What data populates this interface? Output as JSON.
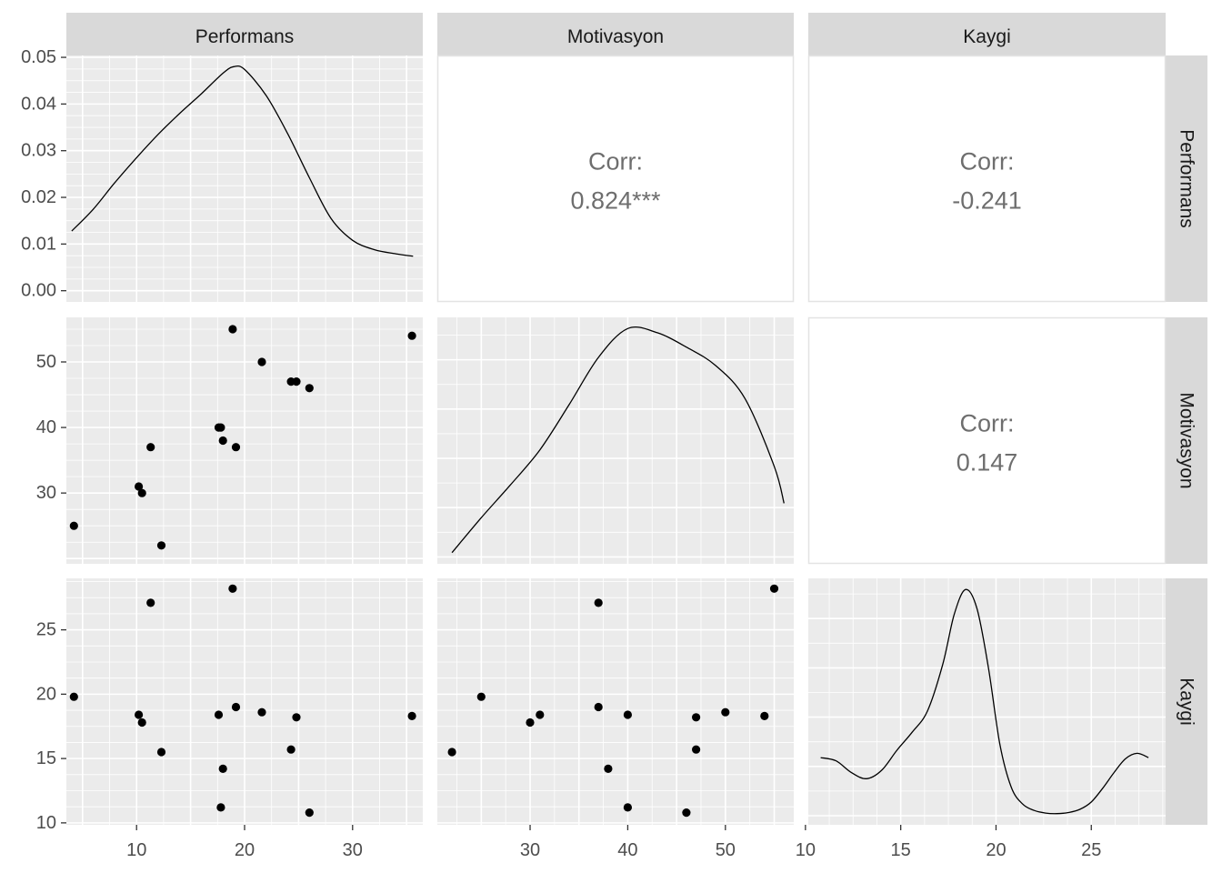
{
  "variables": [
    "Performans",
    "Motivasyon",
    "Kaygi"
  ],
  "chart_data": {
    "type": "scatter",
    "subtype": "scatterplot-matrix",
    "title": "",
    "grid": true,
    "columns": [
      {
        "name": "Performans",
        "x_ticks": [
          10,
          20,
          30
        ],
        "xlim": [
          3.5,
          36.5
        ]
      },
      {
        "name": "Motivasyon",
        "x_ticks": [
          30,
          40,
          50
        ],
        "xlim": [
          20.5,
          57
        ]
      },
      {
        "name": "Kaygi",
        "x_ticks": [
          10,
          15,
          20,
          25
        ],
        "xlim": [
          10.15,
          28.9
        ]
      }
    ],
    "rows": [
      {
        "name": "Performans",
        "y_ticks": [
          "0.00",
          "0.01",
          "0.02",
          "0.03",
          "0.04",
          "0.05"
        ],
        "ylim": [
          -0.0024,
          0.0504
        ]
      },
      {
        "name": "Motivasyon",
        "y_ticks": [
          30,
          40,
          50
        ],
        "ylim": [
          19.2,
          56.8
        ]
      },
      {
        "name": "Kaygi",
        "y_ticks": [
          10,
          15,
          20,
          25
        ],
        "ylim": [
          9.85,
          29.0
        ]
      }
    ],
    "correlations": [
      {
        "row": "Performans",
        "col": "Motivasyon",
        "label": "Corr:",
        "value": "0.824***"
      },
      {
        "row": "Performans",
        "col": "Kaygi",
        "label": "Corr:",
        "value": "-0.241"
      },
      {
        "row": "Motivasyon",
        "col": "Kaygi",
        "label": "Corr:",
        "value": "0.147"
      }
    ],
    "densities": {
      "Performans": {
        "x": [
          4.0,
          6.0,
          8.0,
          10.0,
          12.0,
          14.0,
          16.0,
          18.0,
          19.0,
          20.0,
          22.0,
          24.0,
          26.0,
          28.0,
          30.0,
          32.0,
          34.0,
          35.6
        ],
        "y": [
          0.0128,
          0.0175,
          0.0232,
          0.0285,
          0.0335,
          0.038,
          0.0422,
          0.0466,
          0.048,
          0.0474,
          0.0418,
          0.0336,
          0.0242,
          0.0155,
          0.0108,
          0.0088,
          0.0079,
          0.0074
        ]
      },
      "Motivasyon": {
        "x": [
          22.0,
          25.0,
          28.0,
          31.0,
          34.0,
          37.0,
          40.0,
          43.0,
          46.0,
          49.0,
          52.0,
          55.0,
          56.0
        ],
        "y": [
          0.0122,
          0.0139,
          0.0155,
          0.0172,
          0.0194,
          0.0217,
          0.0231,
          0.0229,
          0.0222,
          0.0213,
          0.0197,
          0.0164,
          0.0146
        ]
      },
      "Kaygi": {
        "x": [
          10.8,
          11.6,
          12.4,
          13.2,
          14.0,
          14.8,
          15.6,
          16.4,
          17.2,
          17.8,
          18.4,
          19.0,
          19.6,
          20.2,
          20.8,
          21.4,
          22.0,
          22.6,
          23.2,
          23.8,
          24.4,
          25.0,
          25.6,
          26.2,
          26.8,
          27.4,
          28.0
        ],
        "y": [
          0.055,
          0.052,
          0.041,
          0.035,
          0.043,
          0.062,
          0.079,
          0.099,
          0.143,
          0.19,
          0.214,
          0.196,
          0.14,
          0.068,
          0.027,
          0.011,
          0.005,
          0.0025,
          0.002,
          0.003,
          0.006,
          0.013,
          0.026,
          0.041,
          0.054,
          0.059,
          0.055
        ]
      }
    },
    "points": [
      {
        "Performans": 4.2,
        "Motivasyon": 25,
        "Kaygi": 19.8
      },
      {
        "Performans": 10.2,
        "Motivasyon": 31,
        "Kaygi": 18.4
      },
      {
        "Performans": 10.5,
        "Motivasyon": 30,
        "Kaygi": 17.8
      },
      {
        "Performans": 11.3,
        "Motivasyon": 37,
        "Kaygi": 27.1
      },
      {
        "Performans": 12.3,
        "Motivasyon": 22,
        "Kaygi": 15.5
      },
      {
        "Performans": 17.6,
        "Motivasyon": 40,
        "Kaygi": 18.4
      },
      {
        "Performans": 17.8,
        "Motivasyon": 40,
        "Kaygi": 11.2
      },
      {
        "Performans": 18.0,
        "Motivasyon": 38,
        "Kaygi": 14.2
      },
      {
        "Performans": 18.9,
        "Motivasyon": 55,
        "Kaygi": 28.2
      },
      {
        "Performans": 19.2,
        "Motivasyon": 37,
        "Kaygi": 19.0
      },
      {
        "Performans": 21.6,
        "Motivasyon": 50,
        "Kaygi": 18.6
      },
      {
        "Performans": 24.3,
        "Motivasyon": 47,
        "Kaygi": 15.7
      },
      {
        "Performans": 24.8,
        "Motivasyon": 47,
        "Kaygi": 18.2
      },
      {
        "Performans": 26.0,
        "Motivasyon": 46,
        "Kaygi": 10.8
      },
      {
        "Performans": 35.5,
        "Motivasyon": 54,
        "Kaygi": 18.3
      }
    ]
  }
}
